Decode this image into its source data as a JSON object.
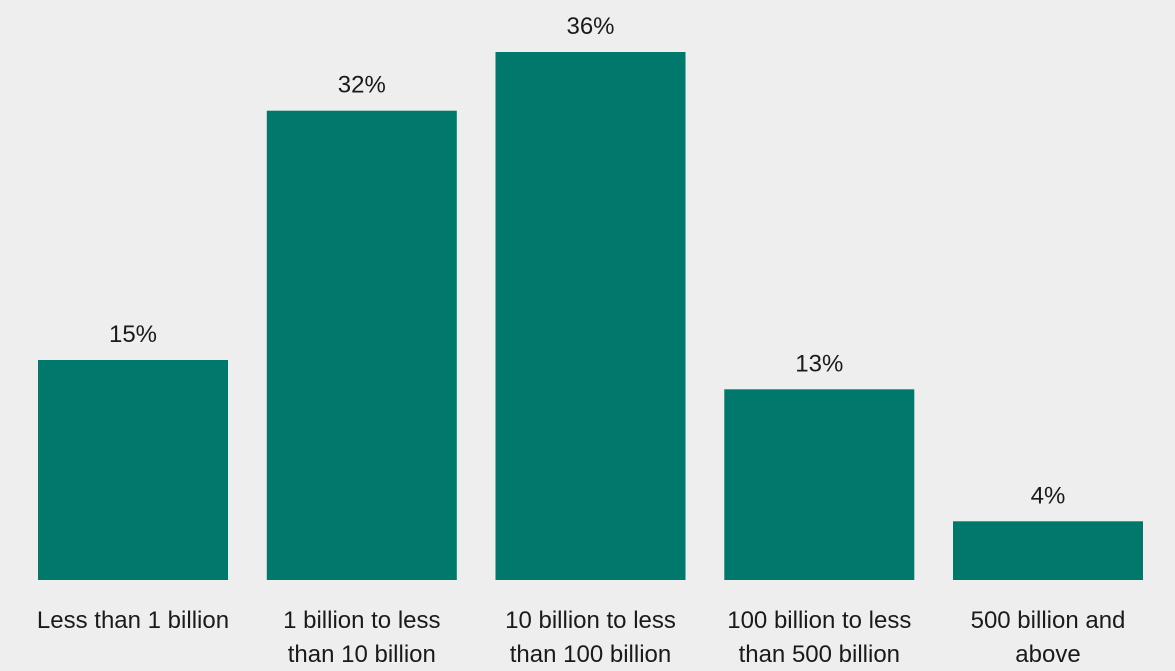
{
  "colors": {
    "background": "#eeeeee",
    "bar": "#00786b",
    "text": "#1a1a1a"
  },
  "chart_data": {
    "type": "bar",
    "categories": [
      [
        "Less than 1 billion"
      ],
      [
        "1 billion to less",
        "than 10 billion"
      ],
      [
        "10 billion to less",
        "than 100 billion"
      ],
      [
        "100 billion to less",
        "than 500 billion"
      ],
      [
        "500 billion and",
        "above"
      ]
    ],
    "values": [
      15,
      32,
      36,
      13,
      4
    ],
    "value_labels": [
      "15%",
      "32%",
      "36%",
      "13%",
      "4%"
    ],
    "unit": "%",
    "ylim": [
      0,
      36
    ],
    "grid": false,
    "legend": "none"
  }
}
